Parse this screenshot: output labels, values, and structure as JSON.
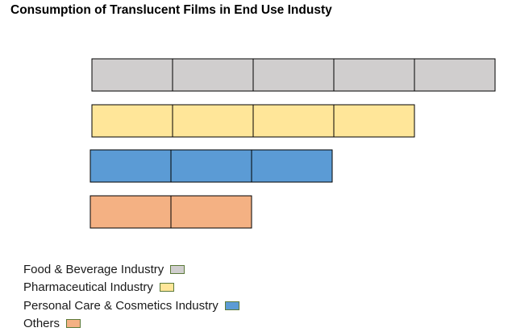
{
  "chart_data": {
    "type": "bar",
    "orientation": "horizontal",
    "title": "Consumption of Translucent Films in End Use Industy",
    "xlabel": "",
    "ylabel": "",
    "grid": false,
    "legend_position": "bottom-left",
    "categories": [
      "Food & Beverage Industry",
      "Pharmaceutical Industry",
      "Personal Care & Cosmetics Industry",
      "Others"
    ],
    "values": [
      5,
      4,
      3,
      2
    ],
    "colors": [
      "#d0cece",
      "#ffe699",
      "#5b9bd5",
      "#f4b183"
    ],
    "legend": [
      {
        "label": "Food & Beverage Industry",
        "color": "#d0cece"
      },
      {
        "label": "Pharmaceutical Industry",
        "color": "#ffe699"
      },
      {
        "label": "Personal Care & Cosmetics Industry",
        "color": "#5b9bd5"
      },
      {
        "label": "Others",
        "color": "#f4b183"
      }
    ]
  }
}
